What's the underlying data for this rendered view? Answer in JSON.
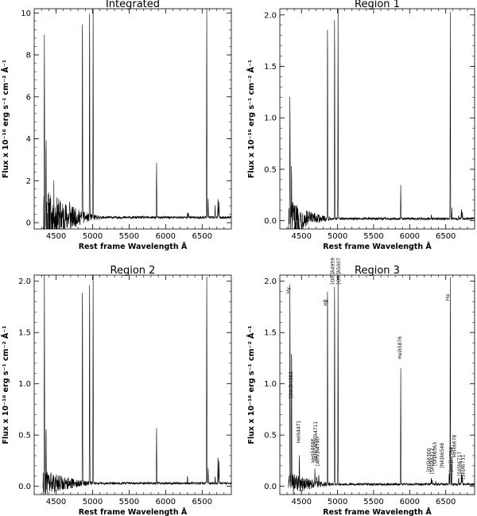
{
  "chart_data": [
    {
      "type": "line",
      "title": "Integrated",
      "xlabel": "Rest frame Wavelength Å",
      "ylabel": "Flux x 10⁻¹⁶ erg s⁻¹ cm⁻² Å⁻¹",
      "xlim": [
        4200,
        6900
      ],
      "ylim": [
        -0.3,
        10.2
      ],
      "xticks": [
        4500,
        5000,
        5500,
        6000,
        6500
      ],
      "yticks": [
        0,
        2,
        4,
        6,
        8,
        10
      ],
      "ytick_labels": [
        "0",
        "2",
        "4",
        "6",
        "8",
        "10"
      ],
      "series": [
        {
          "continuum": 0.25,
          "noise": {
            "start": 4320,
            "end": 5100,
            "amp_start": 1.4,
            "amp_end": 0.1
          },
          "lines": [
            [
              4340,
              10.0
            ],
            [
              4363,
              3.7
            ],
            [
              4471,
              0.8
            ],
            [
              4686,
              0.5
            ],
            [
              4861,
              10.2
            ],
            [
              4959,
              10.2
            ],
            [
              5007,
              10.2
            ],
            [
              5876,
              2.6
            ],
            [
              6300,
              0.3
            ],
            [
              6312,
              0.2
            ],
            [
              6563,
              10.2
            ],
            [
              6583,
              0.9
            ],
            [
              6678,
              0.6
            ],
            [
              6717,
              1.0
            ],
            [
              6731,
              0.8
            ]
          ]
        }
      ]
    },
    {
      "type": "line",
      "title": "Region 1",
      "xlabel": "Rest frame Wavelength Å",
      "ylabel": "Flux x 10⁻¹⁶ erg s⁻¹ cm⁻² Å⁻¹",
      "xlim": [
        4200,
        6900
      ],
      "ylim": [
        -0.08,
        2.06
      ],
      "xticks": [
        4500,
        5000,
        5500,
        6000,
        6500
      ],
      "yticks": [
        0,
        0.5,
        1.0,
        1.5,
        2.0
      ],
      "ytick_labels": [
        "0.0",
        "0.5",
        "1.0",
        "1.5",
        "2.0"
      ],
      "series": [
        {
          "continuum": 0.02,
          "noise": {
            "start": 4320,
            "end": 4900,
            "amp_start": 0.17,
            "amp_end": 0.02
          },
          "lines": [
            [
              4340,
              1.22
            ],
            [
              4363,
              0.42
            ],
            [
              4861,
              2.06
            ],
            [
              4959,
              2.06
            ],
            [
              5007,
              2.06
            ],
            [
              5876,
              0.34
            ],
            [
              6300,
              0.04
            ],
            [
              6563,
              2.06
            ],
            [
              6583,
              0.11
            ],
            [
              6678,
              0.03
            ],
            [
              6717,
              0.1
            ],
            [
              6731,
              0.08
            ]
          ]
        }
      ]
    },
    {
      "type": "line",
      "title": "Region 2",
      "xlabel": "Rest frame Wavelength Å",
      "ylabel": "Flux x 10⁻¹⁶ erg s⁻¹ cm⁻² Å⁻¹",
      "xlim": [
        4200,
        6900
      ],
      "ylim": [
        -0.08,
        2.06
      ],
      "xticks": [
        4500,
        5000,
        5500,
        6000,
        6500
      ],
      "yticks": [
        0,
        0.5,
        1.0,
        1.5,
        2.0
      ],
      "ytick_labels": [
        "0.0",
        "0.5",
        "1.0",
        "1.5",
        "2.0"
      ],
      "series": [
        {
          "continuum": 0.03,
          "noise": {
            "start": 4320,
            "end": 5000,
            "amp_start": 0.12,
            "amp_end": 0.02
          },
          "lines": [
            [
              4340,
              2.06
            ],
            [
              4363,
              0.58
            ],
            [
              4471,
              0.07
            ],
            [
              4861,
              2.06
            ],
            [
              4959,
              2.06
            ],
            [
              5007,
              2.06
            ],
            [
              5876,
              0.54
            ],
            [
              6300,
              0.08
            ],
            [
              6563,
              2.06
            ],
            [
              6583,
              0.15
            ],
            [
              6678,
              0.07
            ],
            [
              6717,
              0.29
            ],
            [
              6731,
              0.22
            ]
          ]
        }
      ]
    },
    {
      "type": "line",
      "title": "Region 3",
      "xlabel": "Rest frame Wavelength Å",
      "ylabel": "Flux x 10⁻¹⁶ erg s⁻¹ cm⁻² Å⁻¹",
      "xlim": [
        4200,
        6900
      ],
      "ylim": [
        -0.08,
        2.06
      ],
      "xticks": [
        4500,
        5000,
        5500,
        6000,
        6500
      ],
      "yticks": [
        0,
        0.5,
        1.0,
        1.5,
        2.0
      ],
      "ytick_labels": [
        "0.0",
        "0.5",
        "1.0",
        "1.5",
        "2.0"
      ],
      "series": [
        {
          "continuum": 0.02,
          "noise": {
            "start": 4320,
            "end": 4900,
            "amp_start": 0.1,
            "amp_end": 0.02
          },
          "lines": [
            [
              4340,
              2.06
            ],
            [
              4363,
              1.4
            ],
            [
              4471,
              0.32
            ],
            [
              4686,
              0.15
            ],
            [
              4711,
              0.09
            ],
            [
              4740,
              0.07
            ],
            [
              4861,
              2.06
            ],
            [
              4959,
              2.06
            ],
            [
              5007,
              2.06
            ],
            [
              5876,
              1.13
            ],
            [
              6300,
              0.06
            ],
            [
              6312,
              0.05
            ],
            [
              6363,
              0.04
            ],
            [
              6548,
              0.12
            ],
            [
              6563,
              2.06
            ],
            [
              6583,
              0.25
            ],
            [
              6678,
              0.07
            ],
            [
              6717,
              0.11
            ],
            [
              6731,
              0.09
            ]
          ]
        }
      ],
      "annotations": [
        {
          "text": "Hγ",
          "x": 4340,
          "y": 1.88
        },
        {
          "text": "[OIII]λ4363",
          "x": 4375,
          "y": 0.86
        },
        {
          "text": "HeIλ4471",
          "x": 4480,
          "y": 0.42
        },
        {
          "text": "HeIIλ4686",
          "x": 4678,
          "y": 0.23
        },
        {
          "text": "HeI+[ArIV]λ4711",
          "x": 4718,
          "y": 0.24
        },
        {
          "text": "[ArIV]λ4740",
          "x": 4748,
          "y": 0.2
        },
        {
          "text": "Hβ",
          "x": 4855,
          "y": 1.76
        },
        {
          "text": "[OIII]λ4959",
          "x": 4955,
          "y": 1.97
        },
        {
          "text": "[OIII]λ5007",
          "x": 5035,
          "y": 1.97
        },
        {
          "text": "HeIλ5876",
          "x": 5885,
          "y": 1.24
        },
        {
          "text": "[OI]λ6300",
          "x": 6290,
          "y": 0.14
        },
        {
          "text": "[SIII]λ6312",
          "x": 6330,
          "y": 0.12
        },
        {
          "text": "[OI]λ6363",
          "x": 6370,
          "y": 0.2
        },
        {
          "text": "[NII]λ6548",
          "x": 6470,
          "y": 0.18
        },
        {
          "text": "Hα",
          "x": 6550,
          "y": 1.81
        },
        {
          "text": "[NII]λ6584",
          "x": 6595,
          "y": 0.14
        },
        {
          "text": "HeIλ6678",
          "x": 6640,
          "y": 0.28
        },
        {
          "text": "[SII]λ6717",
          "x": 6710,
          "y": 0.1
        },
        {
          "text": "[SII]λ6731",
          "x": 6765,
          "y": 0.07
        }
      ]
    }
  ]
}
